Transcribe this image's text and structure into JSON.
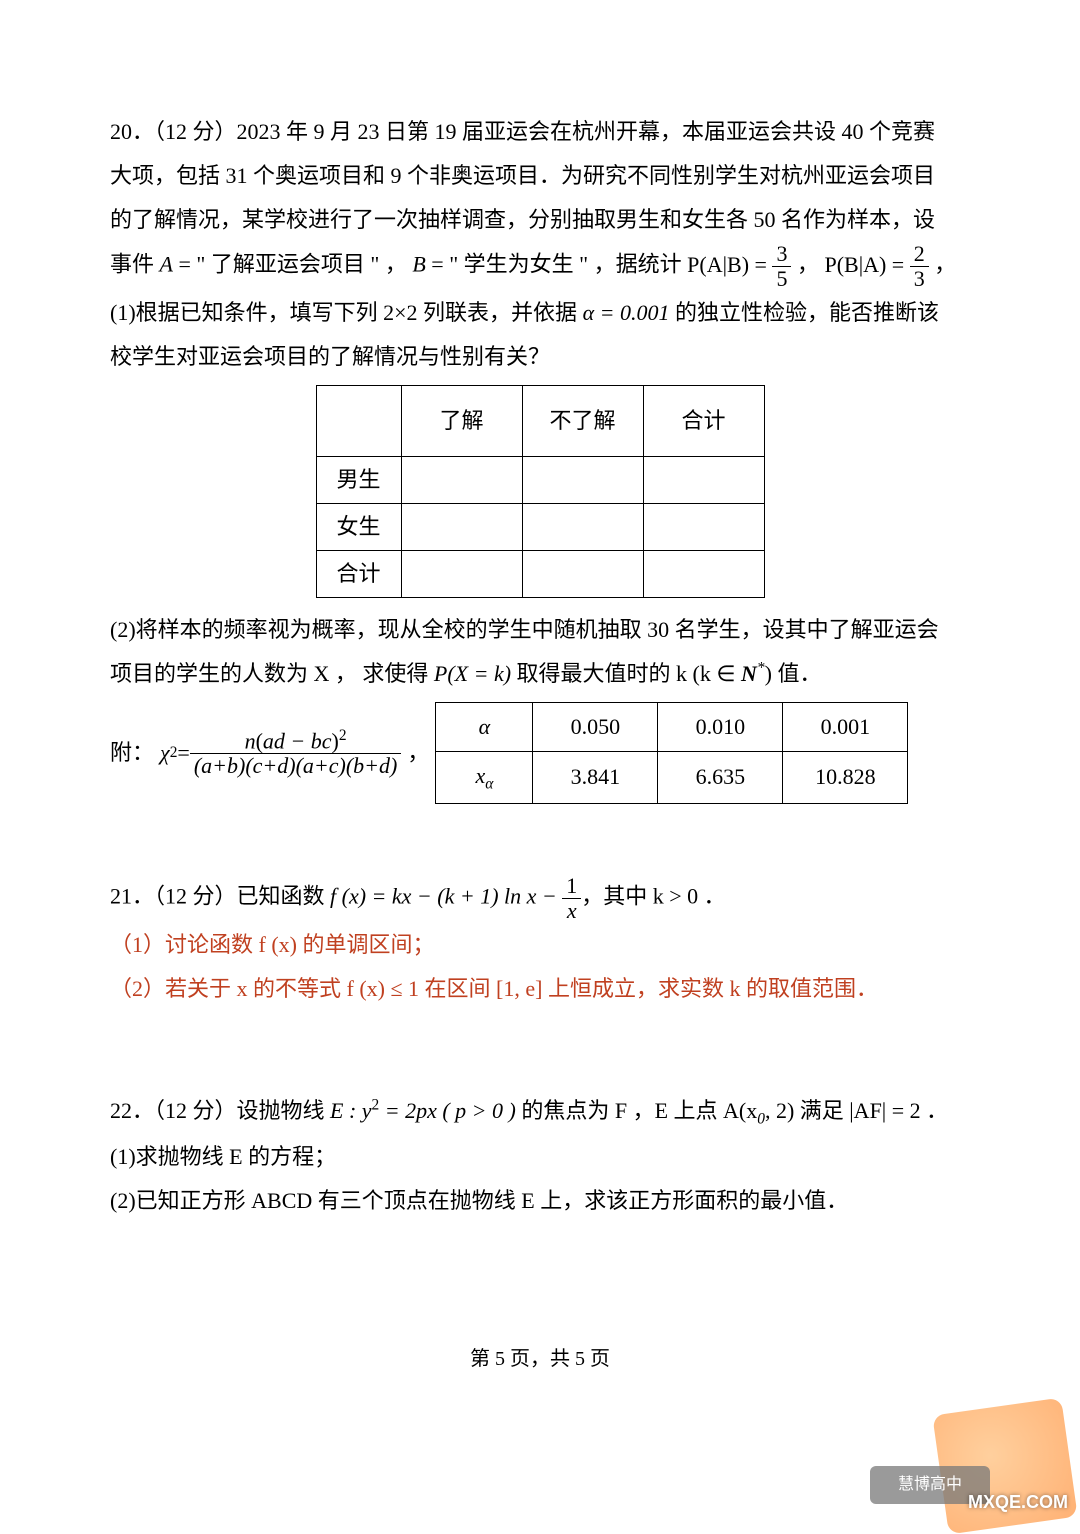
{
  "q20": {
    "heading": "20．（12 分）2023 年 9 月 23 日第 19 届亚运会在杭州开幕，本届亚运会共设 40 个竞赛",
    "p2": "大项，包括 31 个奥运项目和 9 个非奥运项目．为研究不同性别学生对杭州亚运会项目",
    "p3": "的了解情况，某学校进行了一次抽样调查，分别抽取男生和女生各 50 名作为样本，设",
    "event_prefix": "事件 ",
    "event_A": "A",
    "event_A_eq": " = \" 了解亚运会项目 \" ，",
    "event_B": "B",
    "event_B_eq": " = \" 学生为女生 \" ，据统计 ",
    "PAB_lhs": "P(A|B) = ",
    "PAB_num": "3",
    "PAB_den": "5",
    "comma1": "，",
    "PBA_lhs": "P(B|A) = ",
    "PBA_num": "2",
    "PBA_den": "3",
    "comma2": "，",
    "sub1_a": "(1)根据已知条件，填写下列 2×2 列联表，并依据 ",
    "alpha": "α",
    "alpha_eq": " = 0.001",
    "sub1_b": " 的独立性检验，能否推断该",
    "sub1_c": "校学生对亚运会项目的了解情况与性别有关？"
  },
  "contingency": {
    "headers": [
      "",
      "了解",
      "不了解",
      "合计"
    ],
    "rows": [
      "男生",
      "女生",
      "合计"
    ]
  },
  "q20b": {
    "p1": "(2)将样本的频率视为概率，现从全校的学生中随机抽取 30 名学生，设其中了解亚运会",
    "p2_a": "项目的学生的人数为 X ， 求使得 ",
    "p2_mid": "P(X = k)",
    "p2_b": " 取得最大值时的 k  (k ∈ ",
    "Nstar": "N",
    "p2_c": ") 值．"
  },
  "chi": {
    "prefix": "附：",
    "lhs_chi": "χ",
    "lhs_sq": "2",
    "eq": " = ",
    "num_a": "n",
    "num_paren_l": "(",
    "num_inner": "ad − bc",
    "num_paren_r": ")",
    "num_sq": "2",
    "den": "(a+b)(c+d)(a+c)(b+d)",
    "comma": "，",
    "table": {
      "row1": [
        "α",
        "0.050",
        "0.010",
        "0.001"
      ],
      "row2_label": "x",
      "row2_sub": "α",
      "row2": [
        "3.841",
        "6.635",
        "10.828"
      ]
    }
  },
  "q21": {
    "heading_a": "21．（12 分）已知函数 ",
    "fx": "f (x) = kx − (k + 1) ln x − ",
    "frac_num": "1",
    "frac_den": "x",
    "heading_b": "，其中 k > 0 ．",
    "s1": "（1）讨论函数 f (x) 的单调区间；",
    "s2_a": "（2）若关于 x 的不等式 f (x) ≤ 1 在区间 [1, e] 上恒成立，求实数 k 的取值范围．"
  },
  "q22": {
    "p1_a": "22．（12 分）设抛物线 ",
    "p1_mid": "E : y",
    "p1_sq": "2",
    "p1_b": " = 2px ( p > 0 )",
    "p1_c": " 的焦点为 F ，E 上点 A(x",
    "p1_sub0": "0",
    "p1_d": ", 2) 满足 |AF| = 2 ．",
    "s1": "(1)求抛物线 E 的方程；",
    "s2": "(2)已知正方形 ABCD 有三个顶点在抛物线 E 上，求该正方形面积的最小值．"
  },
  "footer": "第 5 页，共 5 页",
  "corner": {
    "strip": "慧博高中",
    "mx": "MXQE.COM"
  }
}
